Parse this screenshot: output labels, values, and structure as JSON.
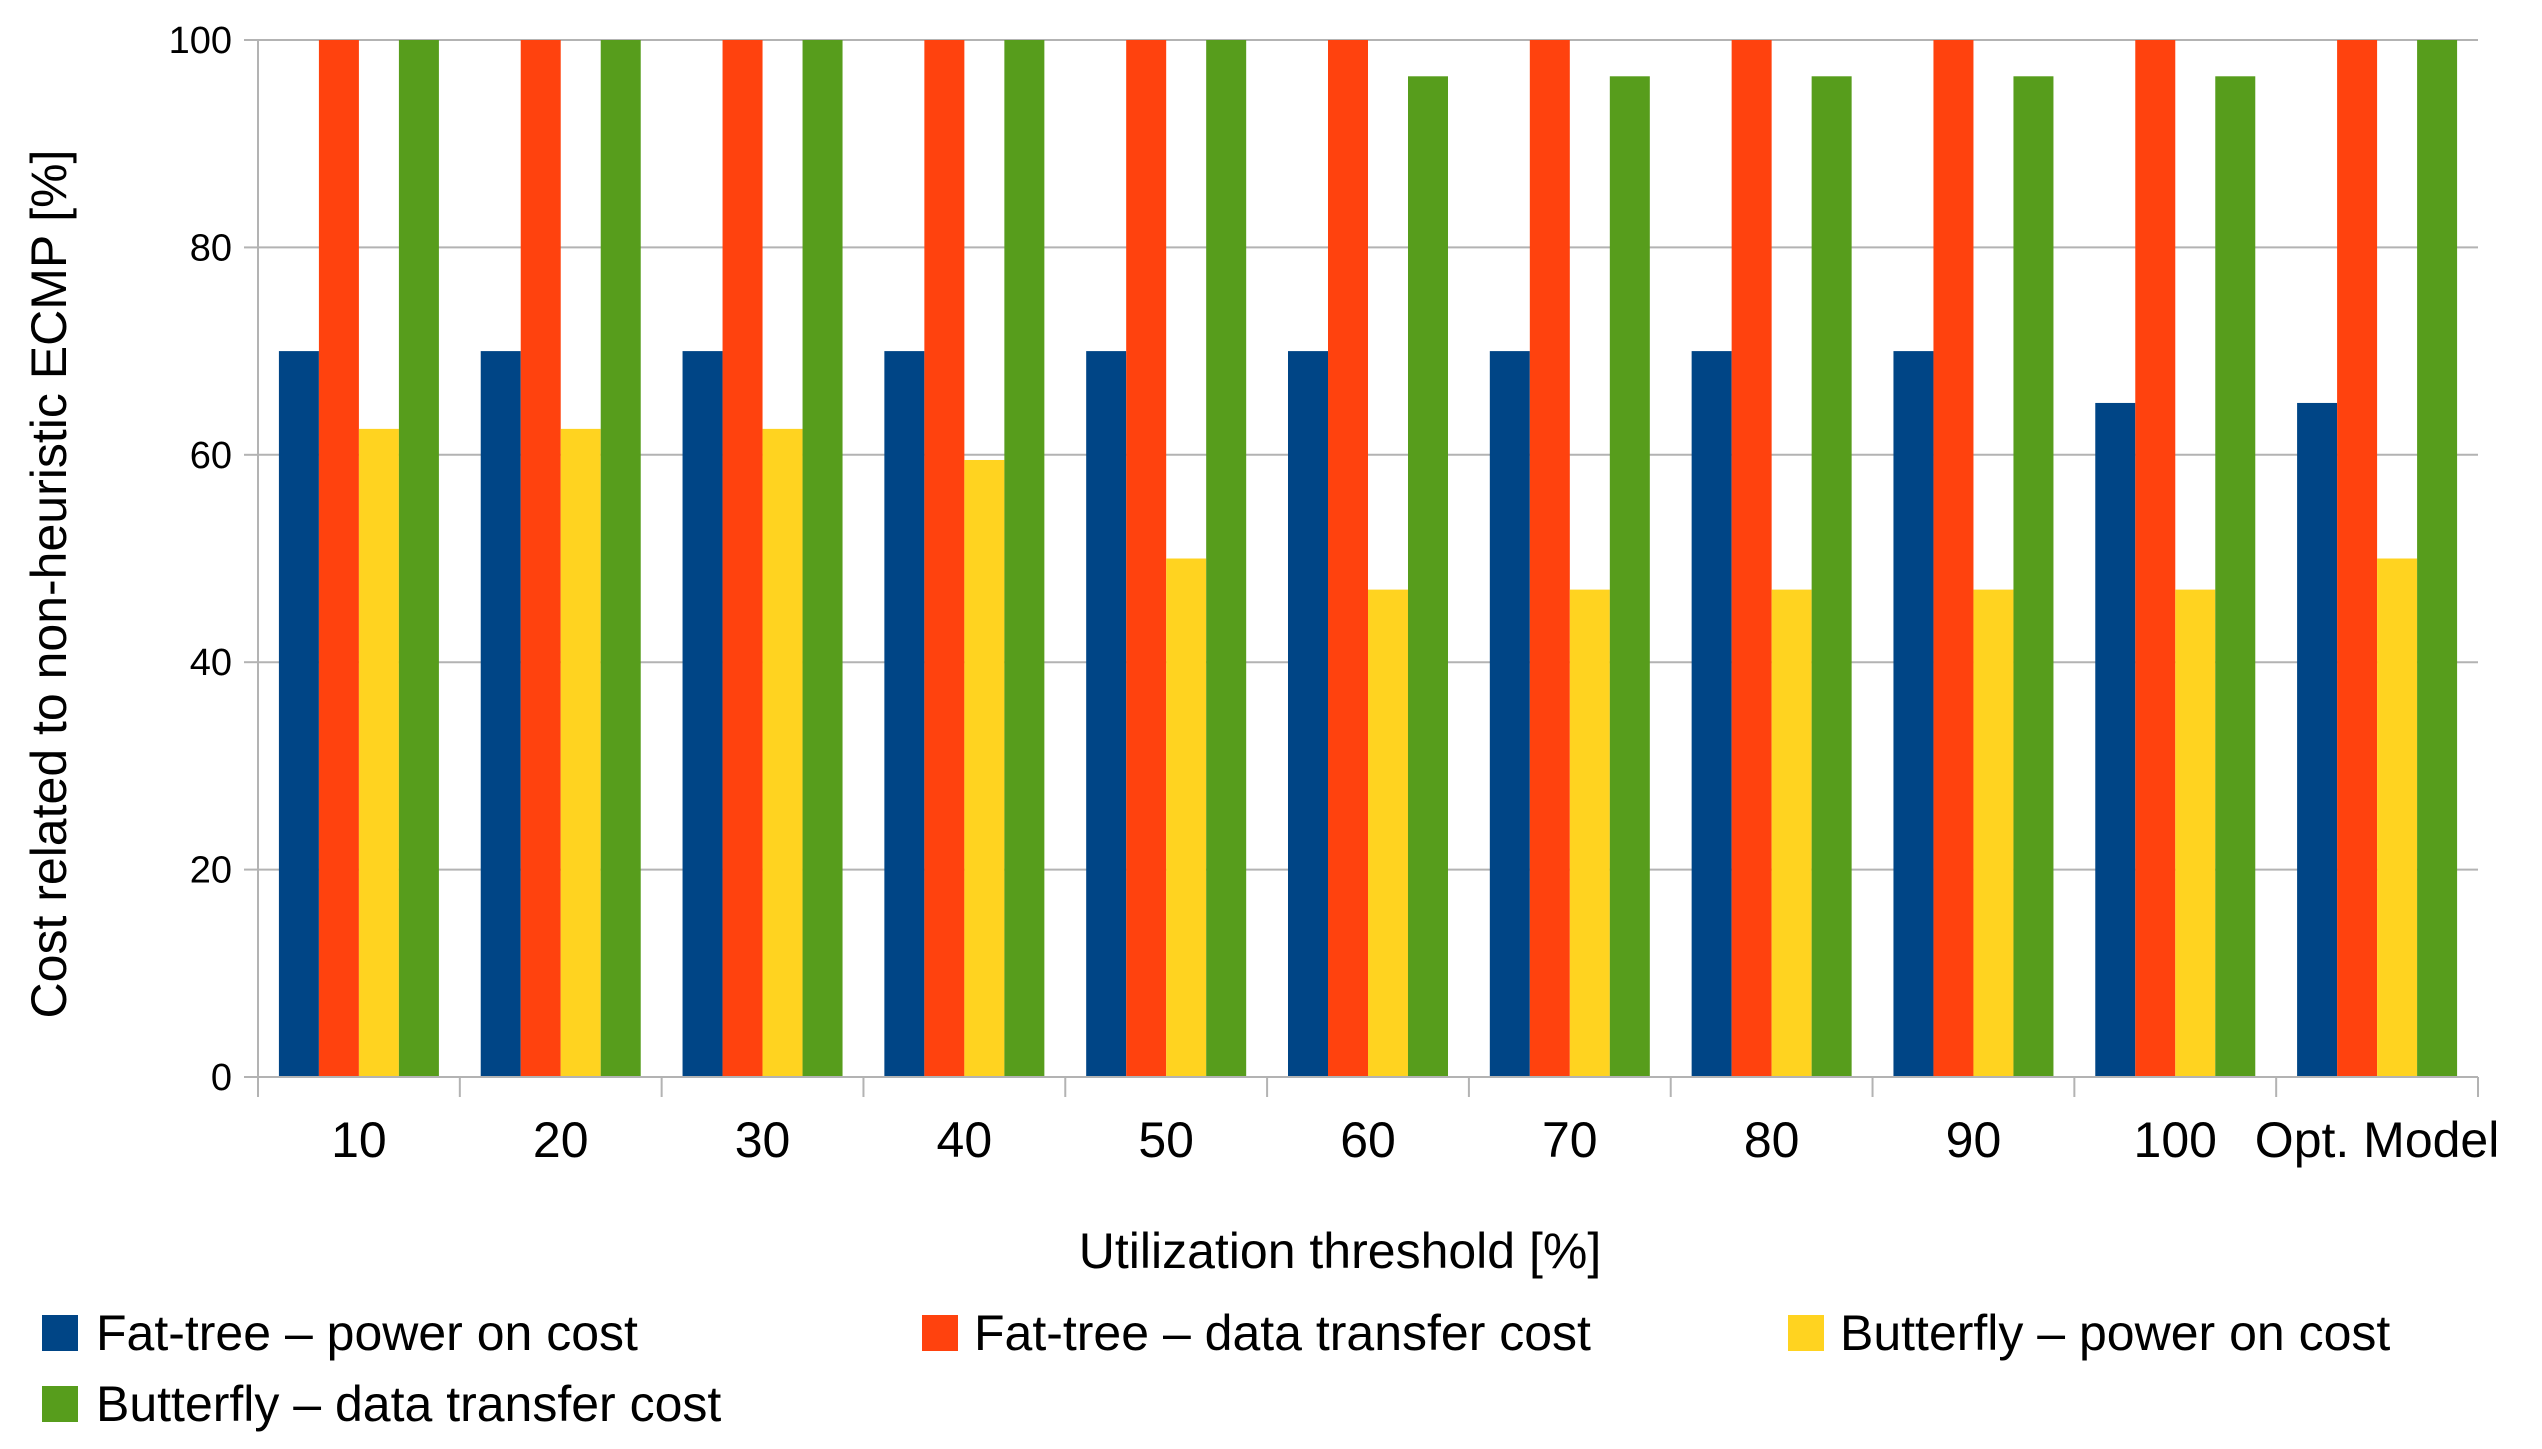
{
  "chart_data": {
    "type": "bar",
    "title": "",
    "xlabel": "Utilization threshold [%]",
    "ylabel": "Cost related to non-heuristic ECMP [%]",
    "ylim": [
      0,
      100
    ],
    "yticks": [
      "0",
      "20",
      "40",
      "60",
      "80",
      "100"
    ],
    "grid": "horizontal",
    "legend_position": "bottom",
    "categories": [
      "10",
      "20",
      "30",
      "40",
      "50",
      "60",
      "70",
      "80",
      "90",
      "100",
      "Opt. Model"
    ],
    "series": [
      {
        "name": "Fat-tree – power on cost",
        "color": "#004586",
        "values": [
          70,
          70,
          70,
          70,
          70,
          70,
          70,
          70,
          70,
          65,
          65
        ]
      },
      {
        "name": "Fat-tree – data transfer cost",
        "color": "#ff420e",
        "values": [
          100,
          100,
          100,
          100,
          100,
          100,
          100,
          100,
          100,
          100,
          100
        ]
      },
      {
        "name": "Butterfly – power on cost",
        "color": "#ffd320",
        "values": [
          62.5,
          62.5,
          62.5,
          59.5,
          50,
          47,
          47,
          47,
          47,
          47,
          50
        ]
      },
      {
        "name": "Butterfly – data transfer cost",
        "color": "#579d1c",
        "values": [
          100,
          100,
          100,
          100,
          100,
          96.5,
          96.5,
          96.5,
          96.5,
          96.5,
          100
        ]
      }
    ]
  }
}
